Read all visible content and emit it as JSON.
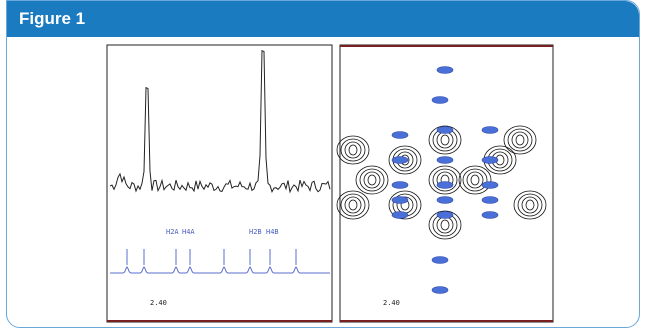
{
  "header": {
    "title": "Figure 1"
  },
  "panels": [
    {
      "peak_labels": [
        "H2A",
        "H4A",
        "H2B",
        "H4B"
      ],
      "axis_label": "2.40"
    },
    {
      "axis_label": "2.40"
    }
  ]
}
